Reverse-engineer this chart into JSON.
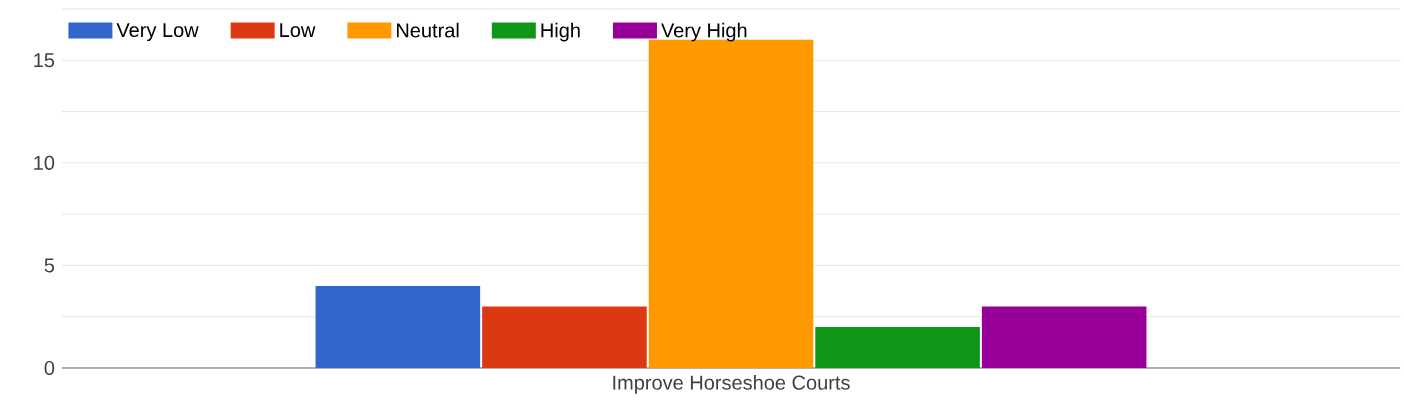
{
  "chart_data": {
    "type": "bar",
    "categories": [
      "Improve Horseshoe Courts"
    ],
    "series": [
      {
        "name": "Very Low",
        "color": "#3366cc",
        "values": [
          4
        ]
      },
      {
        "name": "Low",
        "color": "#dc3912",
        "values": [
          3
        ]
      },
      {
        "name": "Neutral",
        "color": "#ff9900",
        "values": [
          16
        ]
      },
      {
        "name": "High",
        "color": "#109618",
        "values": [
          2
        ]
      },
      {
        "name": "Very High",
        "color": "#990099",
        "values": [
          3
        ]
      }
    ],
    "ylim": [
      0,
      17.5
    ],
    "yticks": [
      0,
      {
        "value": 2.5,
        "label": null
      },
      5,
      {
        "value": 7.5,
        "label": null
      },
      10,
      {
        "value": 12.5,
        "label": null
      },
      15,
      {
        "value": 17.5,
        "label": null
      }
    ],
    "grid": "y",
    "legend": "top left"
  }
}
